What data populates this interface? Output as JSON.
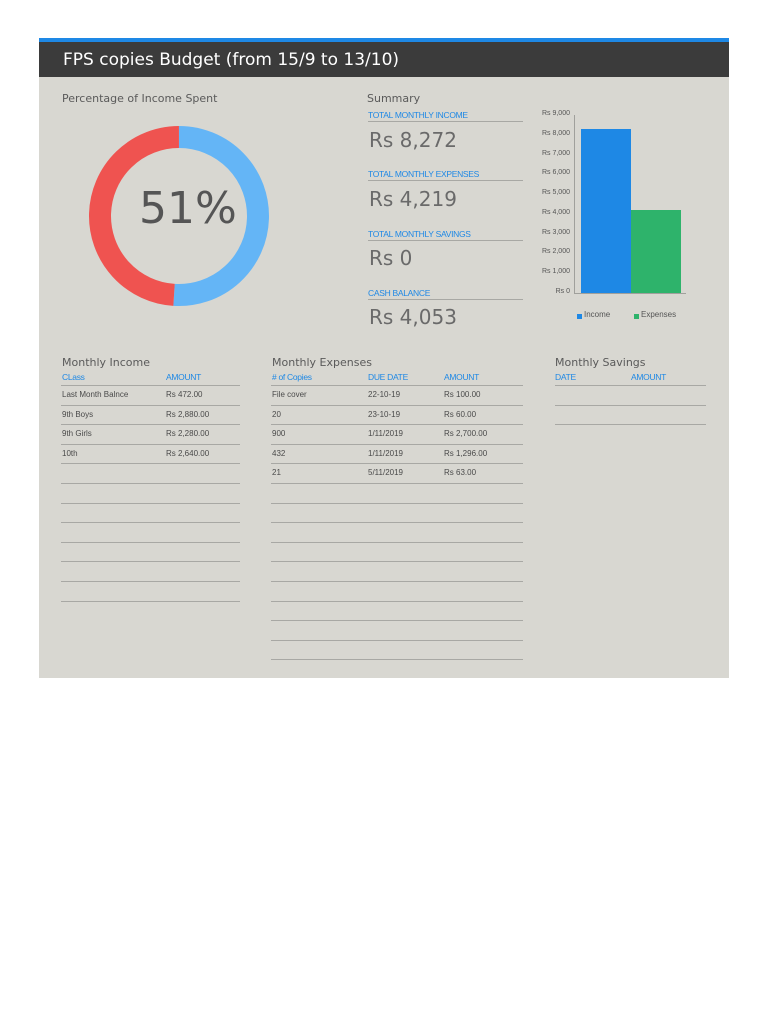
{
  "title": "FPS copies Budget (from 15/9 to 13/10)",
  "donut": {
    "heading": "Percentage of Income Spent",
    "percent_label": "51%",
    "percent_value": 51,
    "spent_color": "#64b5f6",
    "remaining_color": "#ef5350"
  },
  "summary": {
    "heading": "Summary",
    "income_label": "TOTAL MONTHLY INCOME",
    "income_value": "Rs 8,272",
    "expenses_label": "TOTAL MONTHLY EXPENSES",
    "expenses_value": "Rs 4,219",
    "savings_label": "TOTAL MONTHLY SAVINGS",
    "savings_value": "Rs 0",
    "cash_label": "CASH BALANCE",
    "cash_value": "Rs 4,053"
  },
  "chart_data": {
    "type": "bar",
    "categories": [
      "Income",
      "Expenses"
    ],
    "values": [
      8272,
      4219
    ],
    "colors": [
      "#1e88e5",
      "#2eb36b"
    ],
    "ylim": [
      0,
      9000
    ],
    "yticks": [
      "Rs 0",
      "Rs 1,000",
      "Rs 2,000",
      "Rs 3,000",
      "Rs 4,000",
      "Rs 5,000",
      "Rs 6,000",
      "Rs 7,000",
      "Rs 8,000",
      "Rs 9,000"
    ],
    "legend": [
      "Income",
      "Expenses"
    ],
    "legend_position": "bottom",
    "grid": false
  },
  "income": {
    "heading": "Monthly Income",
    "col1": "CLass",
    "col2": "AMOUNT",
    "rows": [
      [
        "Last Month Balnce",
        "Rs 472.00"
      ],
      [
        "9th Boys",
        "Rs 2,880.00"
      ],
      [
        "9th Girls",
        "Rs 2,280.00"
      ],
      [
        "10th",
        "Rs 2,640.00"
      ]
    ]
  },
  "expenses": {
    "heading": "Monthly Expenses",
    "col1": "# of Copies",
    "col2": "DUE DATE",
    "col3": "AMOUNT",
    "rows": [
      [
        "File cover",
        "22-10-19",
        "Rs 100.00"
      ],
      [
        "20",
        "23-10-19",
        "Rs 60.00"
      ],
      [
        "900",
        "1/11/2019",
        "Rs 2,700.00"
      ],
      [
        "432",
        "1/11/2019",
        "Rs 1,296.00"
      ],
      [
        "21",
        "5/11/2019",
        "Rs 63.00"
      ]
    ]
  },
  "savings": {
    "heading": "Monthly Savings",
    "col1": "DATE",
    "col2": "AMOUNT"
  }
}
